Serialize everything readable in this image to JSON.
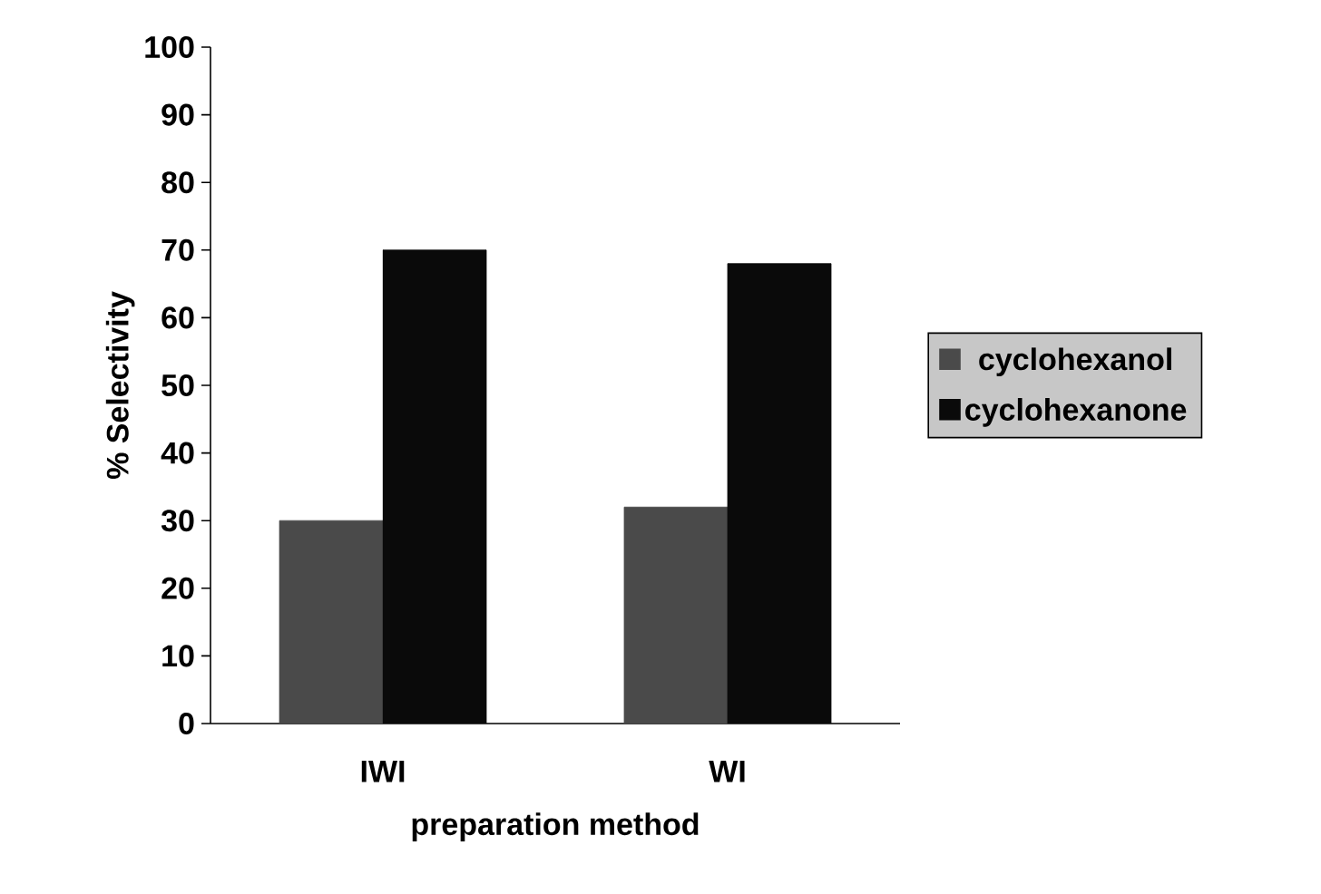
{
  "chart_data": {
    "type": "bar",
    "xlabel": "preparation method",
    "ylabel": "% Selectivity",
    "categories": [
      "IWI",
      "WI"
    ],
    "series": [
      {
        "name": "cyclohexanol",
        "color": "#4a4a4a",
        "values": [
          30,
          32
        ]
      },
      {
        "name": "cyclohexanone",
        "color": "#0a0a0a",
        "values": [
          70,
          68
        ]
      }
    ],
    "ylim": [
      0,
      100
    ],
    "yticks": [
      0,
      10,
      20,
      30,
      40,
      50,
      60,
      70,
      80,
      90,
      100
    ],
    "grid": false,
    "legend": "right"
  }
}
